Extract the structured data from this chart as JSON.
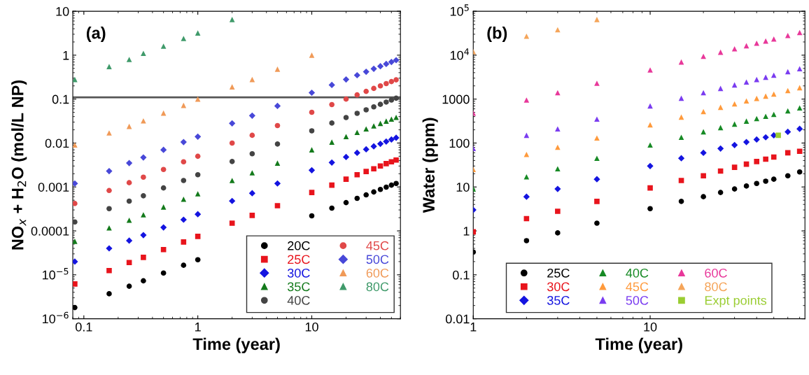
{
  "chart_data": [
    {
      "type": "scatter",
      "annotations": [
        "(a)"
      ],
      "xlabel": "Time (year)",
      "ylabel": "NO$_{x}$ + H$_{2}$O (mol/L NP)",
      "log": "xy",
      "legend": "bottom right",
      "grid": false,
      "xlim": [
        0.08,
        60
      ],
      "xticks": [
        0.1,
        1,
        10
      ],
      "ylim": [
        1e-06,
        10
      ],
      "yticks": [
        {
          "value": 1e-06,
          "label": "10$^{−6}$"
        },
        {
          "value": 1e-05,
          "label": "10$^{−5}$"
        },
        0.0001,
        0.001,
        0.01,
        0.1,
        1,
        10
      ],
      "x": [
        0.0833,
        0.1667,
        0.25,
        0.333,
        0.5,
        0.75,
        1,
        2,
        3,
        5,
        10,
        15,
        20,
        25,
        30,
        35,
        40,
        45,
        50,
        55
      ],
      "ref_lines": [
        {
          "axis": "y",
          "value": 0.11,
          "color": "#555555",
          "line_style": "solid"
        }
      ],
      "series": [
        {
          "name": "20C",
          "color": "#000000",
          "marker": "circle",
          "values": [
            1.8e-06,
            3.7e-06,
            5.5e-06,
            7.3e-06,
            1.1e-05,
            1.65e-05,
            2.2e-05,
            null,
            null,
            null,
            0.00022,
            0.00033,
            0.00044,
            0.00055,
            0.00066,
            0.00077,
            0.00088,
            0.00099,
            0.0011,
            0.0012
          ]
        },
        {
          "name": "25C",
          "color": "#e8141c",
          "marker": "square",
          "values": [
            6.2e-06,
            1.25e-05,
            1.9e-05,
            2.5e-05,
            3.75e-05,
            5.6e-05,
            7.5e-05,
            0.00015,
            0.000225,
            0.000375,
            0.00075,
            0.0011,
            0.0015,
            0.0019,
            0.00225,
            0.0026,
            0.003,
            0.0034,
            0.00375,
            0.0041
          ]
        },
        {
          "name": "30C",
          "color": "#1414e0",
          "marker": "diamond",
          "values": [
            2e-05,
            4e-05,
            6e-05,
            8e-05,
            0.00012,
            0.00018,
            0.00024,
            0.00048,
            0.00072,
            0.0012,
            0.0024,
            0.0036,
            0.0048,
            0.006,
            0.0072,
            0.0084,
            0.0096,
            0.0108,
            0.012,
            0.0132
          ]
        },
        {
          "name": "35C",
          "color": "#137a1b",
          "marker": "triangle",
          "values": [
            5.8e-05,
            0.000117,
            0.000175,
            0.000233,
            0.00035,
            0.000525,
            0.0007,
            0.0014,
            0.0021,
            0.0035,
            0.007,
            0.0105,
            0.014,
            0.0175,
            0.021,
            0.0245,
            0.028,
            0.0315,
            0.035,
            0.0385
          ]
        },
        {
          "name": "40C",
          "color": "#444444",
          "marker": "circle",
          "values": [
            0.00016,
            0.00032,
            0.000475,
            0.00063,
            0.00095,
            0.0014,
            0.0019,
            0.0038,
            0.0057,
            0.0095,
            0.019,
            0.0285,
            0.038,
            0.0475,
            0.057,
            0.0665,
            0.076,
            0.0855,
            0.095,
            0.105
          ]
        },
        {
          "name": "45C",
          "color": "#e04848",
          "marker": "circle",
          "values": [
            0.00042,
            0.00083,
            0.00125,
            0.00167,
            0.0025,
            0.00375,
            0.005,
            0.01,
            0.015,
            0.025,
            0.05,
            0.075,
            0.1,
            0.125,
            0.15,
            0.175,
            0.2,
            0.225,
            0.25,
            0.275
          ]
        },
        {
          "name": "50C",
          "color": "#4848d8",
          "marker": "diamond",
          "values": [
            0.0012,
            0.0023,
            0.0035,
            0.0047,
            0.007,
            0.0105,
            0.014,
            0.028,
            0.042,
            0.07,
            0.14,
            0.21,
            0.28,
            0.35,
            0.42,
            0.49,
            0.56,
            0.63,
            0.7,
            0.77
          ]
        },
        {
          "name": "60C",
          "color": "#f09a58",
          "marker": "triangle",
          "x": [
            0.0833,
            0.1667,
            0.25,
            0.333,
            0.5,
            0.75,
            1,
            2,
            3,
            5,
            10
          ],
          "values": [
            0.009,
            0.017,
            0.024,
            0.032,
            0.048,
            0.072,
            0.1,
            0.19,
            0.28,
            0.48,
            1.0
          ]
        },
        {
          "name": "80C",
          "color": "#3f9a6a",
          "marker": "triangle",
          "x": [
            0.0833,
            0.1667,
            0.25,
            0.333,
            0.5,
            0.75,
            1,
            2
          ],
          "values": [
            0.28,
            0.55,
            0.8,
            1.1,
            1.6,
            2.4,
            3.2,
            6.5
          ]
        }
      ]
    },
    {
      "type": "scatter",
      "annotations": [
        "(b)"
      ],
      "xlabel": "Time (year)",
      "ylabel": "Water (ppm)",
      "log": "xy",
      "legend": "bottom",
      "grid": false,
      "xlim": [
        1,
        75
      ],
      "xticks": [
        1,
        10
      ],
      "ylim": [
        0.01,
        100000
      ],
      "yticks": [
        0.01,
        0.1,
        1,
        10,
        100,
        1000,
        {
          "value": 10000,
          "label": "10$^{4}$"
        },
        {
          "value": 100000,
          "label": "10$^{5}$"
        }
      ],
      "x": [
        1,
        2,
        3,
        5,
        10,
        15,
        20,
        25,
        30,
        35,
        40,
        45,
        50,
        60,
        70
      ],
      "series": [
        {
          "name": "25C",
          "color": "#000000",
          "marker": "circle",
          "values": [
            0.33,
            0.6,
            0.9,
            1.5,
            3.2,
            4.7,
            6,
            7.5,
            9,
            10.5,
            12,
            13.5,
            15,
            18,
            22
          ]
        },
        {
          "name": "30C",
          "color": "#e8141c",
          "marker": "square",
          "values": [
            0.95,
            1.9,
            2.8,
            4.7,
            9.5,
            14,
            18,
            23,
            28,
            33,
            38,
            43,
            48,
            60,
            65
          ]
        },
        {
          "name": "35C",
          "color": "#1414e0",
          "marker": "diamond",
          "values": [
            3,
            6,
            9,
            15,
            30,
            45,
            60,
            75,
            90,
            105,
            120,
            135,
            150,
            180,
            210
          ]
        },
        {
          "name": "40C",
          "color": "#178a25",
          "marker": "triangle",
          "values": [
            9,
            17,
            26,
            45,
            90,
            135,
            180,
            225,
            270,
            315,
            360,
            405,
            450,
            540,
            630
          ]
        },
        {
          "name": "45C",
          "color": "#ff9a3c",
          "marker": "triangle",
          "values": [
            25,
            55,
            80,
            130,
            260,
            390,
            520,
            650,
            780,
            910,
            1040,
            1170,
            1300,
            1560,
            1820
          ]
        },
        {
          "name": "50C",
          "color": "#7a3cf0",
          "marker": "triangle",
          "values": [
            75,
            150,
            210,
            350,
            700,
            1050,
            1400,
            1750,
            2100,
            2450,
            2800,
            3150,
            3500,
            4200,
            4900
          ]
        },
        {
          "name": "60C",
          "color": "#e8389a",
          "marker": "triangle",
          "values": [
            480,
            950,
            1400,
            2300,
            4600,
            7000,
            9400,
            11700,
            14000,
            16400,
            18700,
            21000,
            23400,
            28000,
            32800
          ]
        },
        {
          "name": "80C",
          "color": "#f5a55a",
          "marker": "triangle",
          "x": [
            1,
            2,
            3,
            5
          ],
          "values": [
            12000,
            27000,
            38000,
            65000
          ]
        },
        {
          "name": "Expt points",
          "color": "#9acd32",
          "marker": "square",
          "x": [
            53
          ],
          "values": [
            150
          ]
        }
      ]
    }
  ]
}
